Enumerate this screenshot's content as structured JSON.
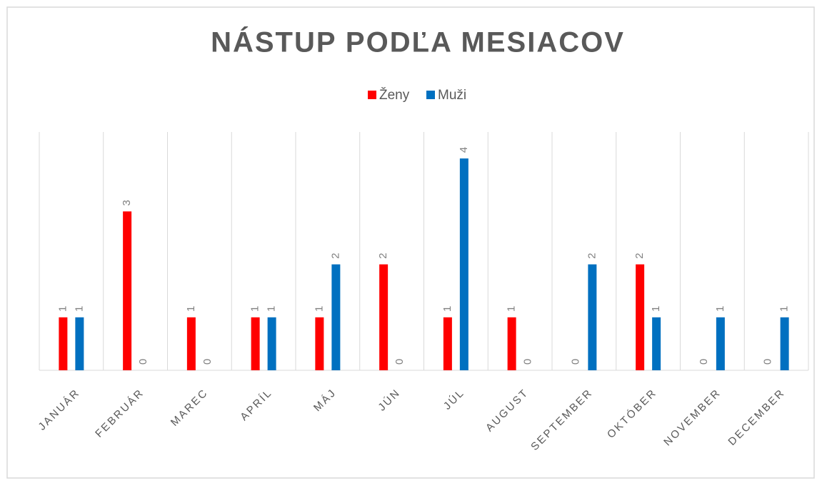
{
  "chart_data": {
    "type": "bar",
    "title": "NÁSTUP PODĽA MESIACOV",
    "categories": [
      "JANUÁR",
      "FEBRUÁR",
      "MAREC",
      "APRÍL",
      "MÁJ",
      "JÚN",
      "JÚL",
      "AUGUST",
      "SEPTEMBER",
      "OKTÓBER",
      "NOVEMBER",
      "DECEMBER"
    ],
    "series": [
      {
        "name": "Ženy",
        "color": "#ff0000",
        "values": [
          1,
          3,
          1,
          1,
          1,
          2,
          1,
          1,
          0,
          2,
          0,
          0
        ]
      },
      {
        "name": "Muži",
        "color": "#0070c0",
        "values": [
          1,
          0,
          0,
          1,
          2,
          0,
          4,
          0,
          2,
          1,
          1,
          1
        ]
      }
    ],
    "ylim": [
      0,
      4.5
    ],
    "legend": "top"
  }
}
